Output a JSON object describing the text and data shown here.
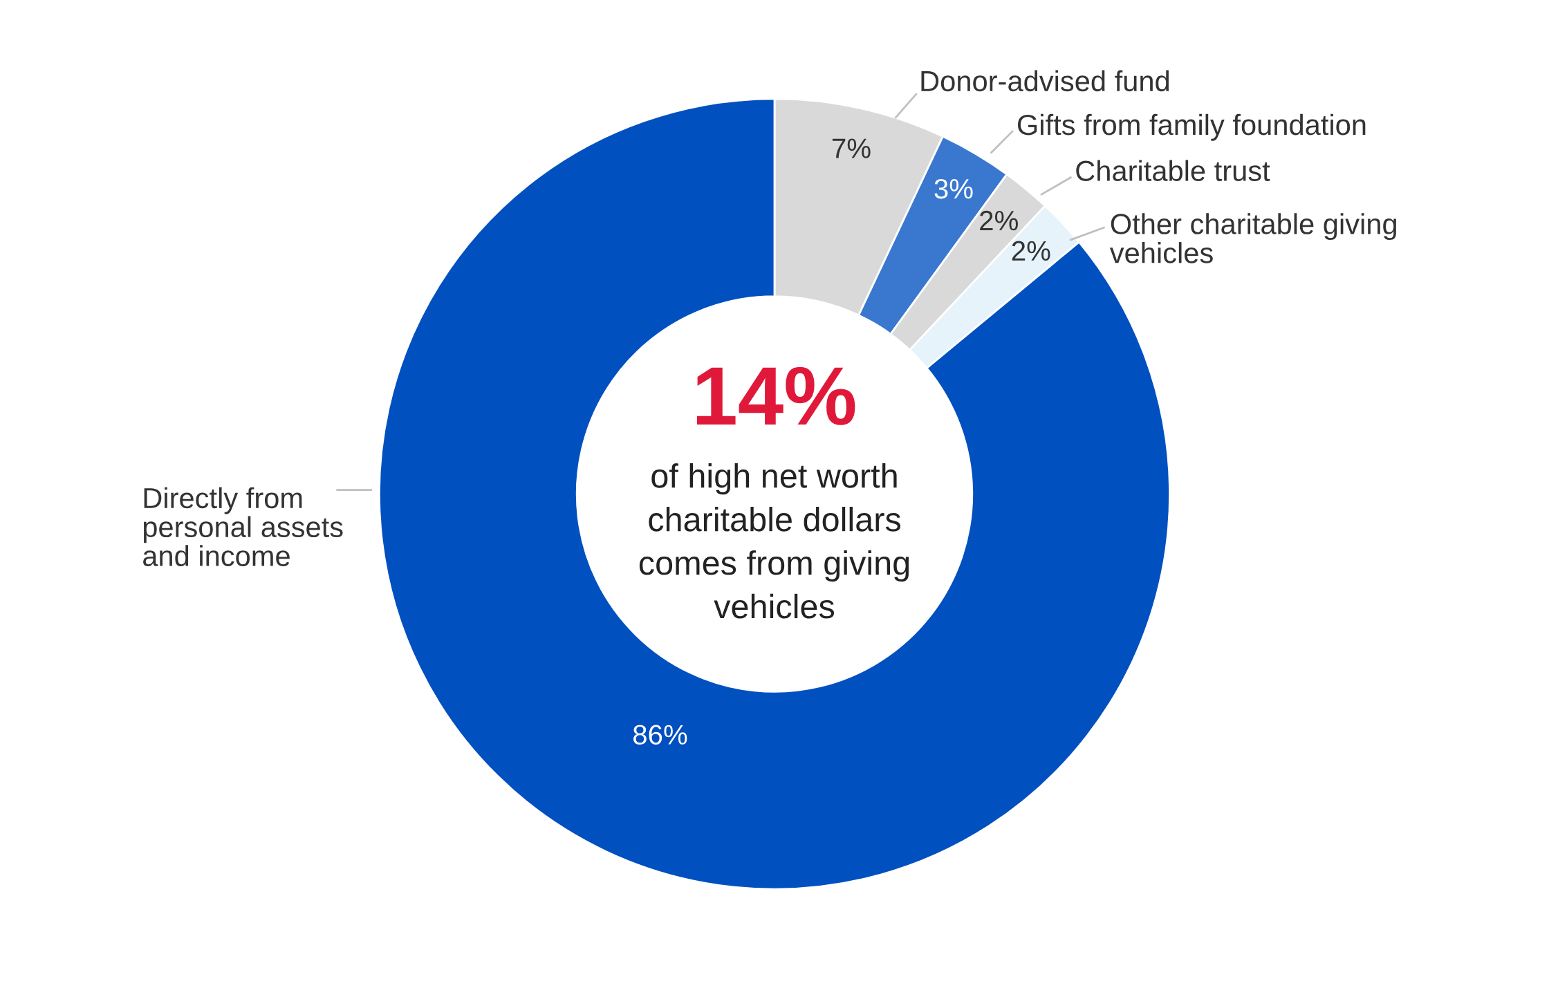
{
  "chart_data": {
    "type": "donut",
    "categories": [
      "Donor-advised fund",
      "Gifts from family foundation",
      "Charitable trust",
      "Other charitable giving vehicles",
      "Directly from personal assets and income"
    ],
    "values": [
      7,
      3,
      2,
      2,
      86
    ],
    "colors": [
      "#d9d9d9",
      "#3a78d0",
      "#d9d9d9",
      "#e6f3fb",
      "#0050c0"
    ],
    "value_labels": [
      "7%",
      "3%",
      "2%",
      "2%",
      "86%"
    ],
    "annotations": [
      "14%",
      "of high net worth\ncharitable dollars\ncomes from giving\nvehicles"
    ]
  }
}
